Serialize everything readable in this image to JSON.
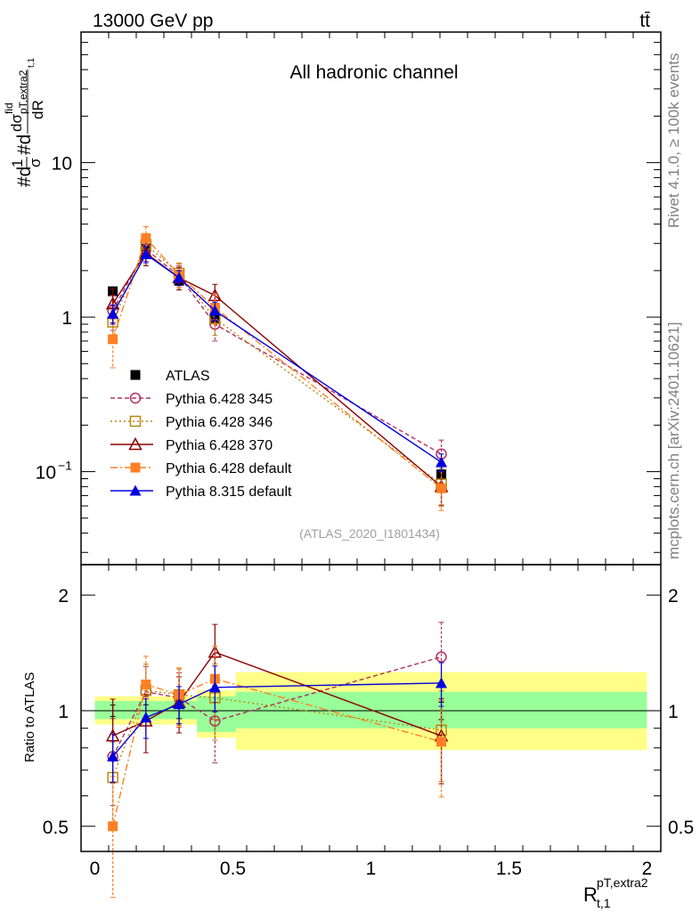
{
  "header": {
    "process": "13000 GeV pp",
    "final_state": "tt̄",
    "channel": "All hadronic channel",
    "analysis_id": "(ATLAS_2020_I1801434)",
    "rivet_info": "Rivet 4.1.0, ≥ 100k events",
    "source_info": "mcplots.cern.ch [arXiv:2401.10621]"
  },
  "axes": {
    "y_title": "#d1/σ#d dσ^fid/dR (pT,extra2 / t,1)",
    "x_title": "R t,1 pT,extra2",
    "ratio_title": "Ratio to ATLAS",
    "top_ticks": [
      "10^-1",
      "1",
      "10"
    ],
    "ratio_ticks": [
      "0.5",
      "1",
      "2"
    ],
    "x_ticks": [
      "0",
      "0.5",
      "1",
      "1.5",
      "2"
    ]
  },
  "chart_data": {
    "type": "scatter",
    "x_range": [
      -0.05,
      2.05
    ],
    "top_y_range": [
      0.025,
      70
    ],
    "top_y_scale": "log",
    "ratio_y_range": [
      0.43,
      2.4
    ],
    "ratio_y_scale": "log",
    "x": [
      0.065,
      0.185,
      0.305,
      0.435,
      1.255
    ],
    "bin_edges": [
      0,
      0.13,
      0.24,
      0.37,
      0.51,
      2.0
    ],
    "band_inner": [
      [
        0.95,
        1.06
      ],
      [
        0.95,
        1.06
      ],
      [
        0.95,
        1.06
      ],
      [
        0.88,
        1.09
      ],
      [
        0.9,
        1.12
      ]
    ],
    "band_outer": [
      [
        0.92,
        1.09
      ],
      [
        0.92,
        1.09
      ],
      [
        0.92,
        1.09
      ],
      [
        0.85,
        1.13
      ],
      [
        0.79,
        1.26
      ]
    ],
    "series": [
      {
        "name": "ATLAS",
        "color": "#000000",
        "marker": "square-filled",
        "dash": "",
        "values": [
          1.47,
          2.78,
          1.72,
          0.97,
          0.096
        ],
        "ratio": [
          1,
          1,
          1,
          1,
          1
        ],
        "errors": [
          0.05,
          0.1,
          0.08,
          0.05,
          0.005
        ]
      },
      {
        "name": "Pythia 6.428 345",
        "color": "#b03060",
        "marker": "circle-open",
        "dash": "5,3",
        "values": [
          1.1,
          2.75,
          1.85,
          0.9,
          0.13
        ],
        "ratio": [
          0.76,
          1.12,
          1.08,
          0.94,
          1.38
        ],
        "errors": [
          0.28,
          0.45,
          0.3,
          0.2,
          0.03
        ]
      },
      {
        "name": "Pythia 6.428 346",
        "color": "#b8860b",
        "marker": "square-open",
        "dash": "2,3",
        "values": [
          0.93,
          2.95,
          1.92,
          0.98,
          0.083
        ],
        "ratio": [
          0.67,
          1.13,
          1.1,
          1.08,
          0.89
        ],
        "errors": [
          0.22,
          0.5,
          0.32,
          0.22,
          0.022
        ]
      },
      {
        "name": "Pythia 6.428 370",
        "color": "#8b0000",
        "marker": "triangle-open",
        "dash": "",
        "values": [
          1.22,
          2.6,
          1.8,
          1.38,
          0.08
        ],
        "ratio": [
          0.86,
          0.94,
          1.05,
          1.42,
          0.86
        ],
        "errors": [
          0.3,
          0.45,
          0.3,
          0.25,
          0.02
        ]
      },
      {
        "name": "Pythia 6.428 default",
        "color": "#ff7f24",
        "marker": "square-filled",
        "dash": "8,3,2,3",
        "values": [
          0.72,
          3.25,
          1.88,
          1.15,
          0.078
        ],
        "ratio": [
          0.5,
          1.17,
          1.1,
          1.21,
          0.83
        ],
        "errors": [
          0.25,
          0.6,
          0.33,
          0.25,
          0.022
        ]
      },
      {
        "name": "Pythia 8.315 default",
        "color": "#0000dd",
        "marker": "triangle-filled",
        "dash": "",
        "values": [
          1.05,
          2.55,
          1.8,
          1.1,
          0.115
        ],
        "ratio": [
          0.76,
          0.96,
          1.04,
          1.15,
          1.18
        ],
        "errors": [
          0.15,
          0.3,
          0.2,
          0.15,
          0.015
        ]
      }
    ]
  }
}
